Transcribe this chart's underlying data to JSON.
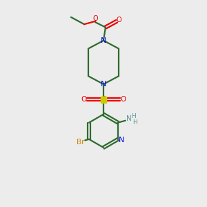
{
  "bg_color": "#ececec",
  "bond_color": "#2d6b2d",
  "N_color": "#0000ee",
  "O_color": "#ee0000",
  "S_color": "#cccc00",
  "S_text_color": "#888800",
  "Br_color": "#cc8800",
  "NH2_color": "#5a9a9a",
  "line_width": 1.6,
  "figsize": [
    3.0,
    3.0
  ],
  "dpi": 100,
  "xlim": [
    0,
    10
  ],
  "ylim": [
    0,
    10
  ]
}
